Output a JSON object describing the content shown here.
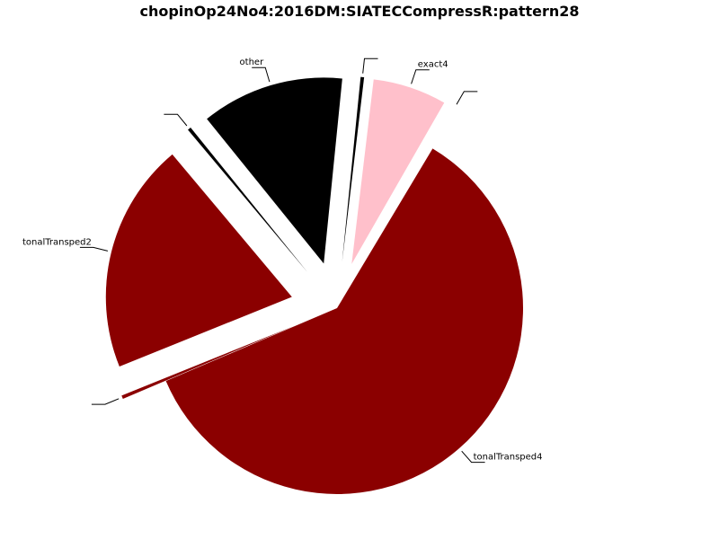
{
  "chart_data": {
    "type": "pie",
    "title": "chopinOp24No4:2016DM:SIATECCompressR:pattern28",
    "slices": [
      {
        "label": "tonalTransped2",
        "value": 20.0,
        "color": "#8b0000"
      },
      {
        "label": "",
        "value": 0.3,
        "color": "#8b0000"
      },
      {
        "label": "tonalTransped4",
        "value": 60.0,
        "color": "#8b0000"
      },
      {
        "label": "",
        "value": 0.3,
        "color": "#ffffff"
      },
      {
        "label": "exact4",
        "value": 6.4,
        "color": "#ffc0cb"
      },
      {
        "label": "",
        "value": 0.3,
        "color": "#000000"
      },
      {
        "label": "other",
        "value": 12.4,
        "color": "#000000"
      },
      {
        "label": "",
        "value": 0.3,
        "color": "#000000"
      }
    ]
  }
}
